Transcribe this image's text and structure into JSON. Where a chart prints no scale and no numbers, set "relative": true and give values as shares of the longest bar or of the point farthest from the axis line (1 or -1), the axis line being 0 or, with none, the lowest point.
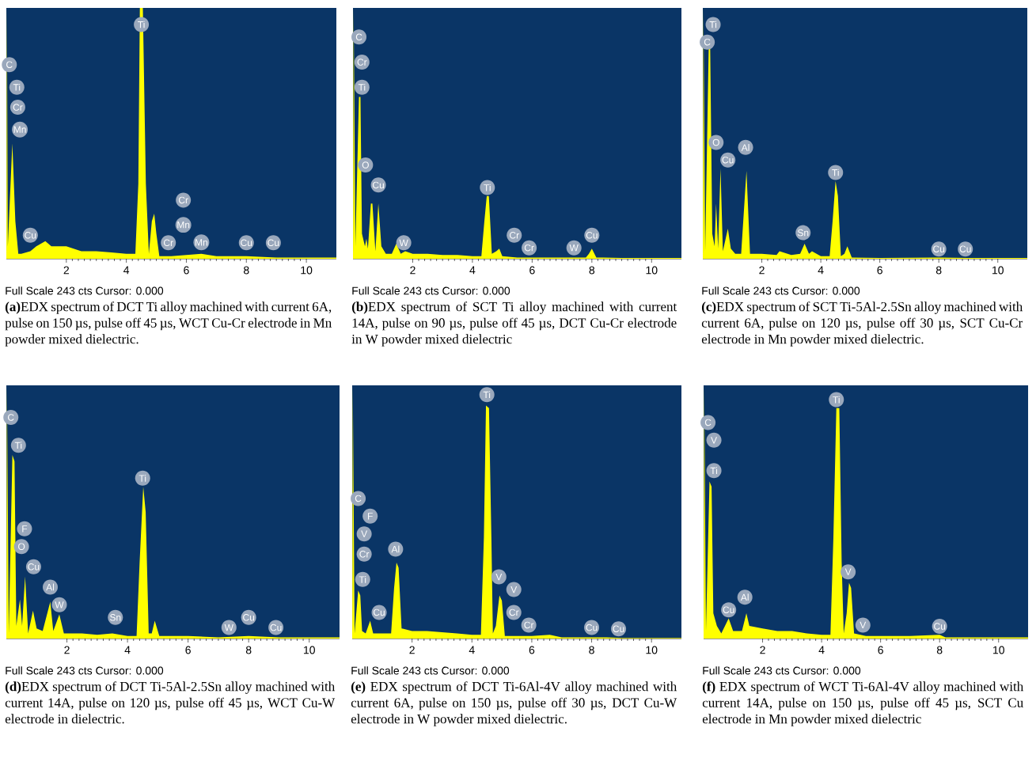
{
  "chart_data": [
    {
      "type": "area",
      "relative": true,
      "color": "#ffff00",
      "xlim": [
        0,
        11
      ],
      "xticks": [
        2,
        4,
        6,
        8,
        10
      ],
      "x": [
        0,
        0.02,
        0.05,
        0.2,
        0.3,
        0.4,
        0.5,
        0.8,
        1.0,
        1.3,
        1.5,
        2.0,
        2.5,
        3.0,
        3.5,
        4.0,
        4.3,
        4.4,
        4.45,
        4.55,
        4.65,
        4.75,
        4.85,
        4.93,
        5.0,
        5.1,
        5.5,
        6.0,
        6.5,
        7.0,
        7.5,
        8.0,
        9.0,
        10.0,
        11.0
      ],
      "values": [
        0,
        1.0,
        0.05,
        0.46,
        0.15,
        0.02,
        0.02,
        0.03,
        0.05,
        0.07,
        0.05,
        0.05,
        0.03,
        0.03,
        0.025,
        0.02,
        0.02,
        0.3,
        1.0,
        1.0,
        0.3,
        0.02,
        0.15,
        0.18,
        0.1,
        0.01,
        0.01,
        0.015,
        0.02,
        0.01,
        0.01,
        0.01,
        0.005,
        0.005,
        0.005
      ],
      "annotations": [
        "Full Scale 243 cts Cursor: 0.000",
        "**(a)**EDX spectrum of DCT Ti alloy machined with current 6A, pulse on 150 µs, pulse off 45 µs, WCT Cu-Cr electrode in Mn powder mixed dielectric.",
        "C",
        "Ti",
        "Cr",
        "Mn",
        "Cu",
        "Ti",
        "Cr",
        "Mn",
        "Cr",
        "Mn",
        "Cu",
        "Cu"
      ]
    },
    {
      "type": "area",
      "relative": true,
      "color": "#ffff00",
      "xlim": [
        0,
        11
      ],
      "xticks": [
        2,
        4,
        6,
        8,
        10
      ],
      "x": [
        0,
        0.02,
        0.08,
        0.2,
        0.25,
        0.3,
        0.4,
        0.45,
        0.5,
        0.6,
        0.65,
        0.75,
        0.85,
        0.95,
        1.1,
        1.3,
        1.45,
        1.6,
        1.75,
        2.0,
        2.5,
        3.0,
        3.5,
        4.0,
        4.3,
        4.4,
        4.48,
        4.55,
        4.65,
        4.8,
        4.9,
        5.0,
        5.5,
        6.0,
        7.0,
        7.8,
        7.9,
        8.0,
        8.15,
        9.0,
        10.0,
        11.0
      ],
      "values": [
        0,
        1.0,
        0.05,
        0.645,
        0.645,
        0.1,
        0.05,
        0.08,
        0.04,
        0.22,
        0.22,
        0.03,
        0.22,
        0.05,
        0.02,
        0.02,
        0.06,
        0.02,
        0.03,
        0.02,
        0.02,
        0.015,
        0.015,
        0.01,
        0.01,
        0.15,
        0.25,
        0.25,
        0.02,
        0.03,
        0.04,
        0.01,
        0.005,
        0.005,
        0.005,
        0.005,
        0.02,
        0.04,
        0.005,
        0.003,
        0.003,
        0.003
      ],
      "annotations": [
        "Full Scale 243 cts Cursor: 0.000",
        "**(b)**EDX spectrum of SCT Ti alloy machined with current 14A, pulse on 90 µs, pulse off 45 µs, DCT Cu-Cr electrode in W powder mixed dielectric",
        "C",
        "Cr",
        "Ti",
        "O",
        "Cu",
        "W",
        "Ti",
        "Cr",
        "Cr",
        "W",
        "Cu"
      ]
    },
    {
      "type": "area",
      "relative": true,
      "color": "#ffff00",
      "xlim": [
        0,
        11
      ],
      "xticks": [
        2,
        4,
        6,
        8,
        10
      ],
      "x": [
        0,
        0.02,
        0.08,
        0.2,
        0.25,
        0.32,
        0.4,
        0.45,
        0.52,
        0.6,
        0.68,
        0.85,
        0.95,
        1.1,
        1.3,
        1.48,
        1.6,
        2.0,
        2.5,
        2.6,
        3.0,
        3.3,
        3.45,
        3.6,
        3.7,
        4.0,
        4.3,
        4.4,
        4.5,
        4.58,
        4.68,
        4.8,
        4.9,
        5.05,
        6.0,
        8.0,
        9.0,
        11.0
      ],
      "values": [
        0,
        1.0,
        0.03,
        0.84,
        0.84,
        0.1,
        0.05,
        0.22,
        0.04,
        0.36,
        0.03,
        0.12,
        0.04,
        0.02,
        0.02,
        0.35,
        0.02,
        0.02,
        0.015,
        0.03,
        0.015,
        0.02,
        0.06,
        0.02,
        0.03,
        0.01,
        0.01,
        0.15,
        0.31,
        0.25,
        0.01,
        0.02,
        0.05,
        0.005,
        0.003,
        0.005,
        0.003,
        0.003
      ],
      "annotations": [
        "Full Scale 243 cts Cursor: 0.000",
        "**(c)**EDX spectrum of SCT Ti-5Al-2.5Sn alloy machined with current 6A, pulse on 120 µs, pulse off 30 µs, SCT Cu-Cr electrode in Mn powder mixed dielectric.",
        "Ti",
        "C",
        "O",
        "Cu",
        "Al",
        "Sn",
        "Ti",
        "Cu",
        "Cu"
      ]
    },
    {
      "type": "area",
      "relative": true,
      "color": "#ffff00",
      "xlim": [
        0,
        11
      ],
      "xticks": [
        2,
        4,
        6,
        8,
        10
      ],
      "x": [
        0,
        0.02,
        0.08,
        0.2,
        0.27,
        0.33,
        0.45,
        0.52,
        0.62,
        0.72,
        0.88,
        1.0,
        1.2,
        1.45,
        1.55,
        1.75,
        1.9,
        2.5,
        3.0,
        3.5,
        4.0,
        4.3,
        4.4,
        4.52,
        4.6,
        4.7,
        4.8,
        4.9,
        5.05,
        5.2,
        6.0,
        7.0,
        8.0,
        9.0,
        11.0
      ],
      "values": [
        0,
        1.0,
        0.02,
        0.725,
        0.7,
        0.05,
        0.155,
        0.05,
        0.245,
        0.02,
        0.11,
        0.04,
        0.03,
        0.145,
        0.03,
        0.095,
        0.02,
        0.02,
        0.015,
        0.02,
        0.01,
        0.01,
        0.3,
        0.6,
        0.5,
        0.02,
        0.02,
        0.07,
        0.01,
        0.01,
        0.01,
        0.005,
        0.01,
        0.005,
        0.005
      ],
      "annotations": [
        "Full Scale 243 cts Cursor: 0.000",
        "**(d)**EDX spectrum of DCT Ti-5Al-2.5Sn alloy machined with current 14A, pulse on 120 µs, pulse off 45 µs, WCT Cu-W electrode in dielectric.",
        "C",
        "Ti",
        "F",
        "O",
        "Cu",
        "Al",
        "W",
        "Sn",
        "Ti",
        "W",
        "Cu",
        "Cu"
      ]
    },
    {
      "type": "area",
      "relative": true,
      "color": "#ffff00",
      "xlim": [
        0,
        11
      ],
      "xticks": [
        2,
        4,
        6,
        8,
        10
      ],
      "x": [
        0,
        0.02,
        0.08,
        0.2,
        0.27,
        0.33,
        0.45,
        0.6,
        0.7,
        1.0,
        1.3,
        1.4,
        1.48,
        1.55,
        1.65,
        2.0,
        2.5,
        3.0,
        3.5,
        4.0,
        4.3,
        4.4,
        4.47,
        4.57,
        4.65,
        4.7,
        4.8,
        4.92,
        5.0,
        5.1,
        5.5,
        6.0,
        6.6,
        7.0,
        8.0,
        8.5,
        9.0,
        10.0,
        11.0
      ],
      "values": [
        0,
        1.0,
        0.02,
        0.19,
        0.17,
        0.03,
        0.02,
        0.07,
        0.02,
        0.02,
        0.02,
        0.2,
        0.3,
        0.28,
        0.04,
        0.03,
        0.03,
        0.025,
        0.02,
        0.015,
        0.015,
        0.4,
        0.92,
        0.91,
        0.4,
        0.02,
        0.05,
        0.17,
        0.15,
        0.01,
        0.01,
        0.01,
        0.015,
        0.005,
        0.005,
        0.005,
        0.002,
        0.002,
        0.002
      ],
      "annotations": [
        "Full Scale 243 cts Cursor: 0.000",
        "**(e)** EDX spectrum of DCT Ti-6Al-4V alloy machined with current 6A, pulse on 150 µs, pulse off 30 µs, DCT Cu-W electrode in W powder mixed dielectric.",
        "C",
        "F",
        "V",
        "Cr",
        "Ti",
        "Cu",
        "Al",
        "Ti",
        "V",
        "V",
        "Cr",
        "Cr",
        "Cu",
        "Cu"
      ]
    },
    {
      "type": "area",
      "relative": true,
      "color": "#ffff00",
      "xlim": [
        0,
        11
      ],
      "xticks": [
        2,
        4,
        6,
        8,
        10
      ],
      "x": [
        0,
        0.02,
        0.08,
        0.2,
        0.27,
        0.33,
        0.45,
        0.6,
        0.85,
        1.0,
        1.3,
        1.45,
        1.55,
        2.0,
        2.5,
        3.0,
        3.5,
        4.0,
        4.3,
        4.4,
        4.5,
        4.6,
        4.68,
        4.75,
        4.85,
        4.93,
        5.0,
        5.1,
        5.5,
        6.0,
        7.0,
        8.0,
        8.2,
        9.0,
        10.0,
        11.0
      ],
      "values": [
        0,
        1.0,
        0.03,
        0.62,
        0.6,
        0.1,
        0.05,
        0.02,
        0.08,
        0.03,
        0.03,
        0.1,
        0.05,
        0.04,
        0.03,
        0.03,
        0.02,
        0.015,
        0.015,
        0.4,
        0.91,
        0.91,
        0.3,
        0.02,
        0.1,
        0.22,
        0.2,
        0.02,
        0.01,
        0.01,
        0.01,
        0.015,
        0.005,
        0.005,
        0.005,
        0.005
      ],
      "annotations": [
        "Full Scale 243 cts Cursor: 0.000",
        "**(f)** EDX spectrum of WCT Ti-6Al-4V alloy machined with current 14A, pulse on 150 µs, pulse off 45 µs, SCT Cu electrode in Mn powder mixed dielectric",
        "C",
        "V",
        "Ti",
        "Cu",
        "Al",
        "Ti",
        "V",
        "V",
        "Cu"
      ]
    }
  ]
}
